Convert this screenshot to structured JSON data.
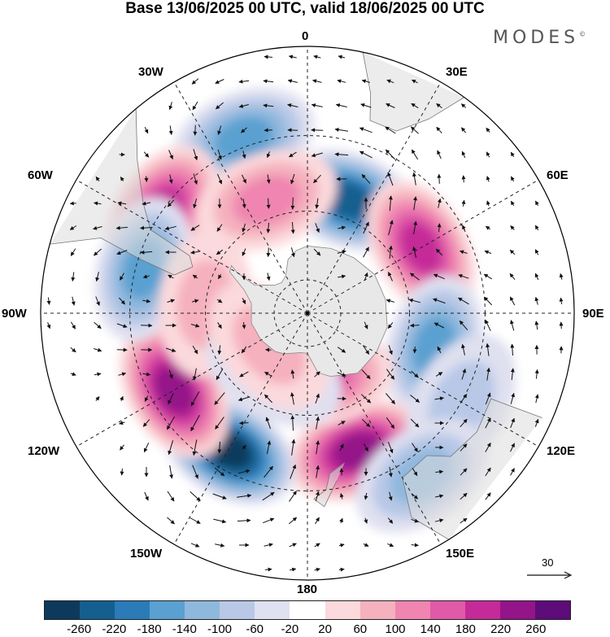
{
  "title": "Base 13/06/2025 00 UTC, valid 18/06/2025 00 UTC",
  "brand": "MODES",
  "brand_mark": "©",
  "longitude_labels": {
    "top": "0",
    "top_right": "30E",
    "right_upper": "60E",
    "right": "90E",
    "right_lower": "120E",
    "bottom_right": "150E",
    "bottom": "180",
    "bottom_left": "150W",
    "left_lower": "120W",
    "left": "90W",
    "left_upper": "60W",
    "top_left": "30W"
  },
  "reference_vector": "30",
  "colorbar": {
    "colors": [
      "#0d3a5c",
      "#145f8f",
      "#2b7bb9",
      "#5aa0d0",
      "#8fb8dd",
      "#b8c8e6",
      "#dfe0f0",
      "#ffffff",
      "#fbd9dc",
      "#f5b1bd",
      "#ef85b0",
      "#e05aa8",
      "#c42b98",
      "#941489",
      "#5d0c7a"
    ],
    "ticks": [
      "-260",
      "-220",
      "-180",
      "-140",
      "-100",
      "-60",
      "-20",
      "20",
      "60",
      "100",
      "140",
      "180",
      "220",
      "260"
    ]
  },
  "anomaly_cells": [
    {
      "lon": 20,
      "lat": -55,
      "value": -240
    },
    {
      "lon": 60,
      "lat": -52,
      "value": 180
    },
    {
      "lon": 105,
      "lat": -52,
      "value": -140
    },
    {
      "lon": 160,
      "lat": -48,
      "value": 220
    },
    {
      "lon": 168,
      "lat": -70,
      "value": 150
    },
    {
      "lon": -150,
      "lat": -45,
      "value": -280
    },
    {
      "lon": -120,
      "lat": -46,
      "value": 230
    },
    {
      "lon": -20,
      "lat": -38,
      "value": -150
    },
    {
      "lon": -55,
      "lat": -40,
      "value": 200
    },
    {
      "lon": -75,
      "lat": -42,
      "value": -170
    },
    {
      "lon": -20,
      "lat": -55,
      "value": 120
    },
    {
      "lon": -85,
      "lat": -60,
      "value": 90
    },
    {
      "lon": -150,
      "lat": -70,
      "value": -90
    },
    {
      "lon": -130,
      "lat": -75,
      "value": 90
    },
    {
      "lon": 120,
      "lat": -40,
      "value": -60
    },
    {
      "lon": 145,
      "lat": -35,
      "value": -120
    }
  ]
}
